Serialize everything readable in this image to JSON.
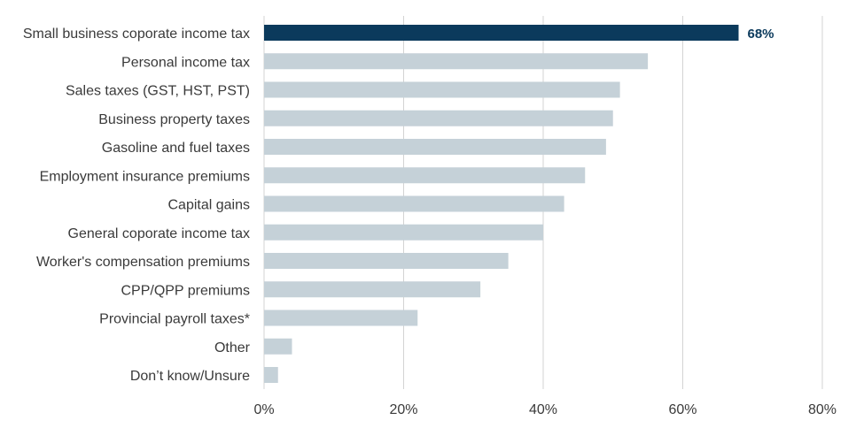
{
  "chart_data": {
    "type": "bar",
    "orientation": "horizontal",
    "categories": [
      "Small business coporate income tax",
      "Personal income tax",
      "Sales taxes (GST, HST, PST)",
      "Business property taxes",
      "Gasoline and fuel taxes",
      "Employment insurance premiums",
      "Capital gains",
      "General coporate income tax",
      "Worker's compensation premiums",
      "CPP/QPP premiums",
      "Provincial payroll taxes*",
      "Other",
      "Don’t know/Unsure"
    ],
    "values": [
      68,
      55,
      51,
      50,
      49,
      46,
      43,
      40,
      35,
      31,
      22,
      4,
      2
    ],
    "highlight_index": 0,
    "data_labels": [
      "68%"
    ],
    "xlim": [
      0,
      80
    ],
    "x_ticks": [
      0,
      20,
      40,
      60,
      80
    ],
    "x_tick_labels": [
      "0%",
      "20%",
      "40%",
      "60%",
      "80%"
    ],
    "grid": true,
    "legend": "none",
    "title": "",
    "xlabel": "",
    "ylabel": "",
    "colors": {
      "highlight_bar": "#0b3a5c",
      "bar": "#c5d1d8",
      "grid": "#d3d3d3",
      "label_highlight": "#0b3a5c"
    }
  }
}
